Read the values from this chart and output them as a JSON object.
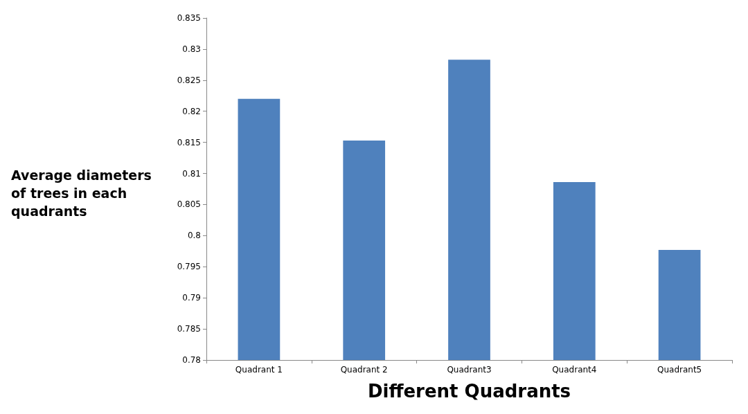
{
  "chart_data": {
    "type": "bar",
    "xlabel": "Different Quadrants",
    "ylabel": "Average diameters of trees in each quadrants",
    "categories": [
      "Quadrant 1",
      "Quadrant 2",
      "Quadrant3",
      "Quadrant4",
      "Quadrant5"
    ],
    "values": [
      0.822,
      0.8153,
      0.8283,
      0.8086,
      0.7977
    ],
    "color": "#4f81bd",
    "ylim": [
      0.78,
      0.835
    ],
    "yticks": [
      0.78,
      0.785,
      0.79,
      0.795,
      0.8,
      0.805,
      0.81,
      0.815,
      0.82,
      0.825,
      0.83,
      0.835
    ],
    "grid": false
  }
}
